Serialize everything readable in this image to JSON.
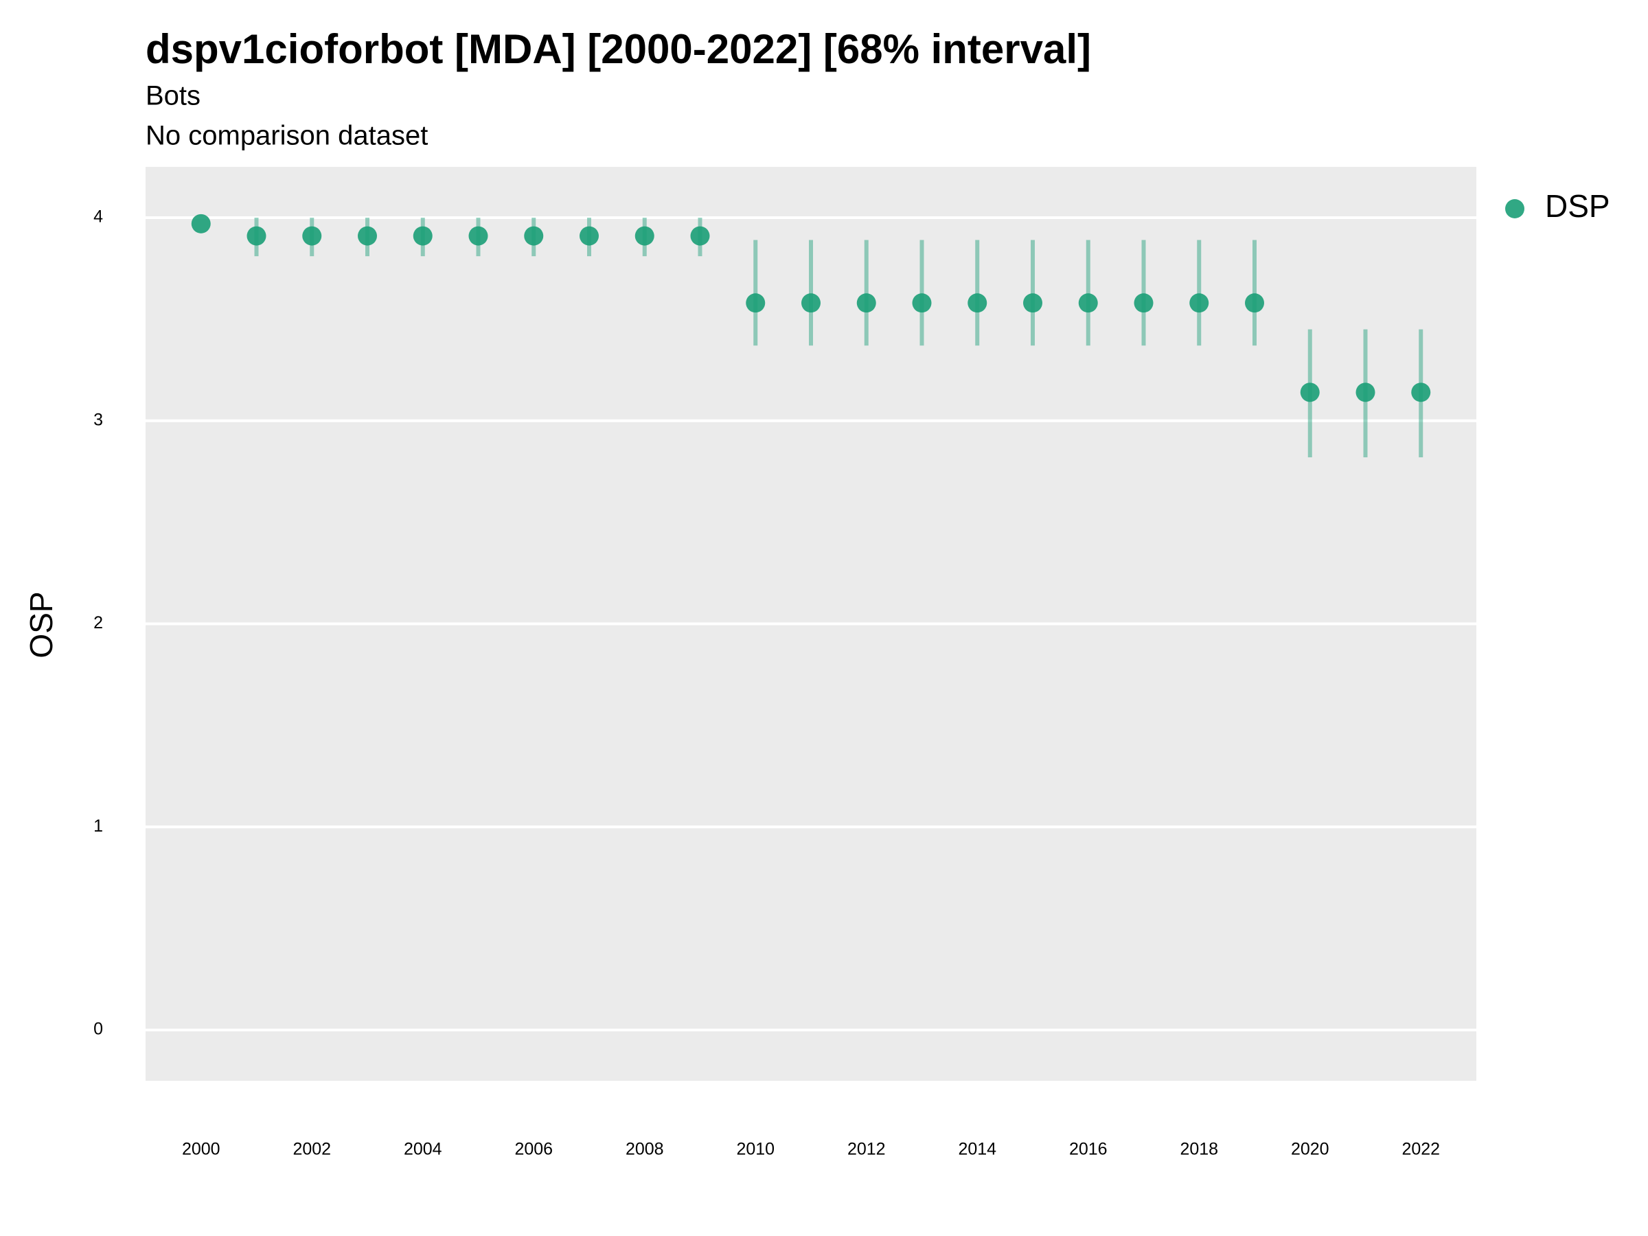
{
  "chart_data": {
    "type": "scatter",
    "title": "dspv1cioforbot [MDA] [2000-2022] [68% interval]",
    "subtitle": "Bots",
    "caption": "No comparison dataset",
    "y_label": "OSP",
    "x": [
      2000,
      2001,
      2002,
      2003,
      2004,
      2005,
      2006,
      2007,
      2008,
      2009,
      2010,
      2011,
      2012,
      2013,
      2014,
      2015,
      2016,
      2017,
      2018,
      2019,
      2020,
      2021,
      2022
    ],
    "series": [
      {
        "name": "DSP",
        "color": "#1b9e77",
        "values": [
          3.97,
          3.91,
          3.91,
          3.91,
          3.91,
          3.91,
          3.91,
          3.91,
          3.91,
          3.91,
          3.58,
          3.58,
          3.58,
          3.58,
          3.58,
          3.58,
          3.58,
          3.58,
          3.58,
          3.58,
          3.14,
          3.14,
          3.14
        ],
        "lower": [
          null,
          3.81,
          3.81,
          3.81,
          3.81,
          3.81,
          3.81,
          3.81,
          3.81,
          3.81,
          3.37,
          3.37,
          3.37,
          3.37,
          3.37,
          3.37,
          3.37,
          3.37,
          3.37,
          3.37,
          2.82,
          2.82,
          2.82
        ],
        "upper": [
          null,
          4.0,
          4.0,
          4.0,
          4.0,
          4.0,
          4.0,
          4.0,
          4.0,
          4.0,
          3.89,
          3.89,
          3.89,
          3.89,
          3.89,
          3.89,
          3.89,
          3.89,
          3.89,
          3.89,
          3.45,
          3.45,
          3.45
        ]
      }
    ],
    "xlim": [
      1999,
      2023
    ],
    "xticks": [
      2000,
      2002,
      2004,
      2006,
      2008,
      2010,
      2012,
      2014,
      2016,
      2018,
      2020,
      2022
    ],
    "ylim": [
      -0.25,
      4.25
    ],
    "yticks": [
      0,
      1,
      2,
      3,
      4
    ],
    "grid": true,
    "legend": "right"
  }
}
